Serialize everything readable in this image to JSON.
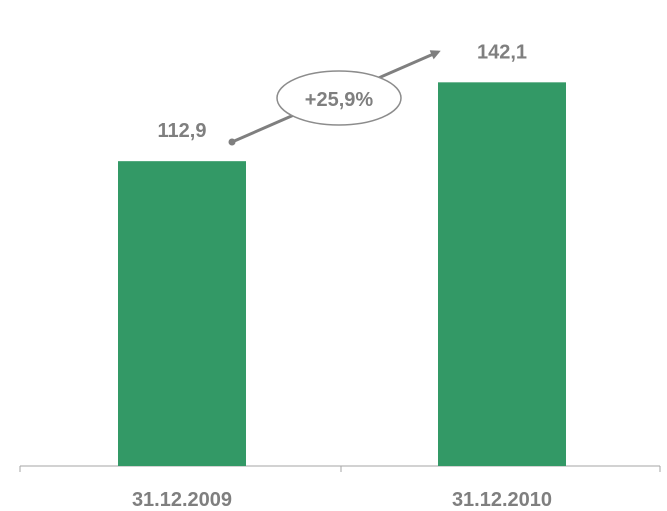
{
  "chart_data": {
    "type": "bar",
    "categories": [
      "31.12.2009",
      "31.12.2010"
    ],
    "values": [
      112.9,
      142.1
    ],
    "value_labels": [
      "112,9",
      "142,1"
    ],
    "change_label": "+25,9%",
    "title": "",
    "xlabel": "",
    "ylabel": "",
    "ylim": [
      0,
      160
    ],
    "grid": false,
    "legend": "none",
    "colors": {
      "bar": "#339966",
      "text": "#7f7f7f",
      "axis": "#a6a6a6",
      "arrow": "#7f7f7f"
    }
  }
}
